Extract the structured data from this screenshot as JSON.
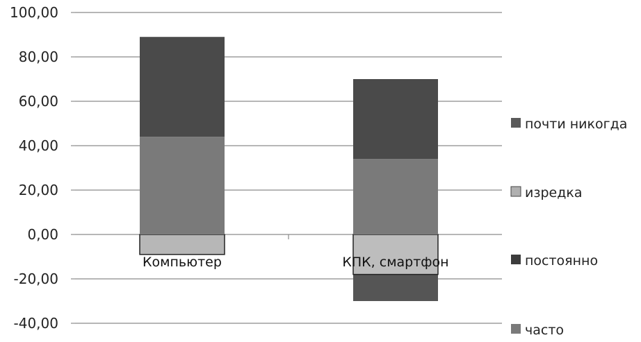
{
  "chart_data": {
    "type": "bar",
    "stacked": true,
    "categories": [
      "Компьютер",
      "КПК, смартфон"
    ],
    "ylim": [
      -40,
      100
    ],
    "yticks": [
      "100,00",
      "80,00",
      "60,00",
      "40,00",
      "20,00",
      "0,00",
      "-20,00",
      "-40,00"
    ],
    "ytick_values": [
      100,
      80,
      60,
      40,
      20,
      0,
      -20,
      -40
    ],
    "grid": true,
    "legend_position": "right",
    "series": [
      {
        "name": "часто",
        "values": [
          0,
          -12
        ],
        "color": "#555555"
      },
      {
        "name": "постоянно",
        "values": [
          0,
          -18
        ],
        "color": "#bdbdbd"
      },
      {
        "name": "изредка",
        "values": [
          -9,
          34
        ],
        "color": "#7a7a7a"
      },
      {
        "name": "почти никогда",
        "values": [
          44,
          36
        ],
        "color": "#4a4a4a"
      },
      {
        "name": "",
        "values": [
          45,
          0
        ],
        "color": "#4a4a4a"
      }
    ],
    "legend": [
      {
        "name": "почти никогда",
        "color": "#5a5a5a"
      },
      {
        "name": "изредка",
        "color": "#b0b0b0"
      },
      {
        "name": "постоянно",
        "color": "#3c3c3c"
      },
      {
        "name": "часто",
        "color": "#7a7a7a"
      }
    ]
  }
}
